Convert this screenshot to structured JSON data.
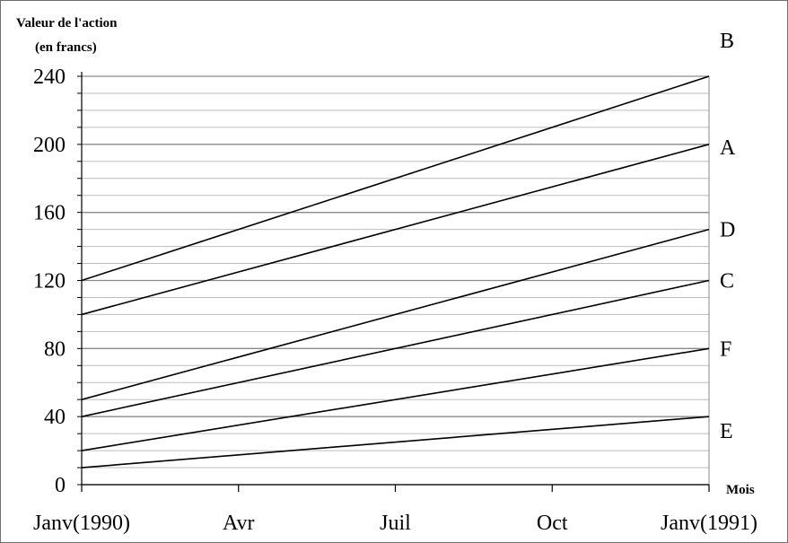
{
  "chart_data": {
    "type": "line",
    "ylabel_line1": "Valeur de l'action",
    "ylabel_line2": "(en francs)",
    "xlabel": "Mois",
    "x_ticks": [
      "Janv(1990)",
      "Avr",
      "Juil",
      "Oct",
      "Janv(1991)"
    ],
    "y_ticks": [
      0,
      40,
      80,
      120,
      160,
      200,
      240
    ],
    "ylim": [
      0,
      240
    ],
    "y_minor_step": 10,
    "x_domain": [
      0,
      12
    ],
    "x_tick_values": [
      0,
      3,
      6,
      9,
      12
    ],
    "grid": true,
    "series": [
      {
        "name": "B",
        "x": [
          0,
          12
        ],
        "values": [
          120,
          240
        ]
      },
      {
        "name": "A",
        "x": [
          0,
          12
        ],
        "values": [
          100,
          200
        ]
      },
      {
        "name": "D",
        "x": [
          0,
          12
        ],
        "values": [
          50,
          150
        ]
      },
      {
        "name": "C",
        "x": [
          0,
          12
        ],
        "values": [
          40,
          120
        ]
      },
      {
        "name": "F",
        "x": [
          0,
          12
        ],
        "values": [
          20,
          80
        ]
      },
      {
        "name": "E",
        "x": [
          0,
          12
        ],
        "values": [
          10,
          40
        ]
      }
    ]
  }
}
